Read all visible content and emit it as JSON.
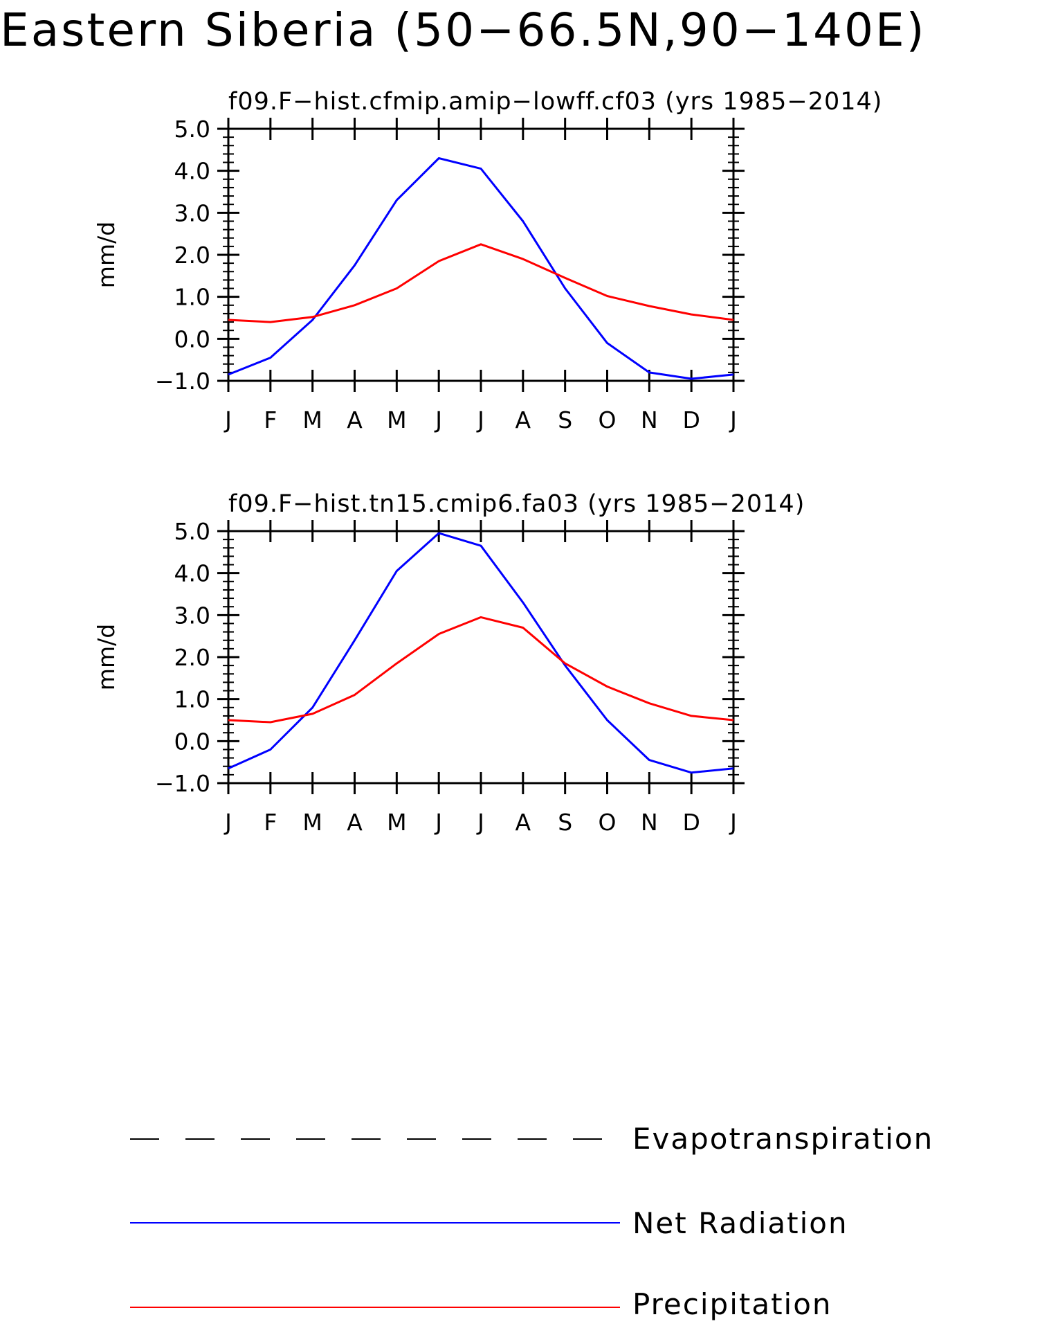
{
  "title": "Eastern Siberia (50−66.5N,90−140E)",
  "colors": {
    "net_radiation": "#0000ff",
    "precipitation": "#ff0000",
    "evapotranspiration": "#000000"
  },
  "legend": [
    {
      "label": "Evapotranspiration",
      "style": "dashed",
      "color": "#000000"
    },
    {
      "label": "Net Radiation",
      "style": "solid",
      "color": "#0000ff"
    },
    {
      "label": "Precipitation",
      "style": "solid",
      "color": "#ff0000"
    }
  ],
  "chart_data": [
    {
      "type": "line",
      "title": "f09.F−hist.cfmip.amip−lowff.cf03 (yrs 1985−2014)",
      "ylabel": "mm/d",
      "xlabel": "",
      "ylim": [
        -1.0,
        5.0
      ],
      "yticks": [
        "5.0",
        "4.0",
        "3.0",
        "2.0",
        "1.0",
        "0.0",
        "−1.0"
      ],
      "categories": [
        "J",
        "F",
        "M",
        "A",
        "M",
        "J",
        "J",
        "A",
        "S",
        "O",
        "N",
        "D",
        "J"
      ],
      "series": [
        {
          "key": "net_radiation",
          "values": [
            -0.85,
            -0.45,
            0.45,
            1.75,
            3.3,
            4.3,
            4.05,
            2.8,
            1.2,
            -0.1,
            -0.8,
            -0.95,
            -0.85
          ]
        },
        {
          "key": "precipitation",
          "values": [
            0.45,
            0.4,
            0.52,
            0.8,
            1.2,
            1.85,
            2.25,
            1.9,
            1.45,
            1.02,
            0.78,
            0.58,
            0.45
          ]
        }
      ],
      "grid": false
    },
    {
      "type": "line",
      "title": "f09.F−hist.tn15.cmip6.fa03 (yrs 1985−2014)",
      "ylabel": "mm/d",
      "xlabel": "",
      "ylim": [
        -1.0,
        5.0
      ],
      "yticks": [
        "5.0",
        "4.0",
        "3.0",
        "2.0",
        "1.0",
        "0.0",
        "−1.0"
      ],
      "categories": [
        "J",
        "F",
        "M",
        "A",
        "M",
        "J",
        "J",
        "A",
        "S",
        "O",
        "N",
        "D",
        "J"
      ],
      "series": [
        {
          "key": "net_radiation",
          "values": [
            -0.65,
            -0.2,
            0.8,
            2.4,
            4.05,
            4.95,
            4.65,
            3.3,
            1.8,
            0.5,
            -0.45,
            -0.75,
            -0.65
          ]
        },
        {
          "key": "precipitation",
          "values": [
            0.5,
            0.45,
            0.65,
            1.1,
            1.85,
            2.55,
            2.95,
            2.7,
            1.85,
            1.3,
            0.9,
            0.6,
            0.5
          ]
        }
      ],
      "grid": false
    }
  ]
}
